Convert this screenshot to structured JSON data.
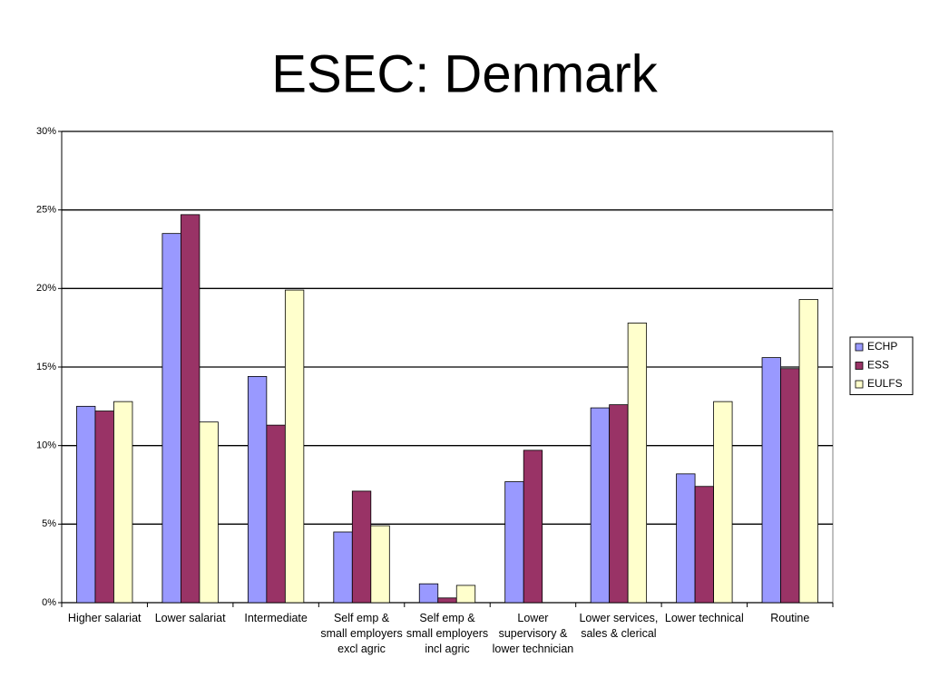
{
  "chart_data": {
    "type": "bar",
    "title": "ESEC: Denmark",
    "categories": [
      "Higher salariat",
      "Lower salariat",
      "Intermediate",
      "Self emp & small employers excl agric",
      "Self emp & small employers incl agric",
      "Lower supervisory & lower technician",
      "Lower services, sales & clerical",
      "Lower technical",
      "Routine"
    ],
    "series": [
      {
        "name": "ECHP",
        "color": "#9999ff",
        "values": [
          12.5,
          23.5,
          14.4,
          4.5,
          1.2,
          7.7,
          12.4,
          8.2,
          15.6
        ]
      },
      {
        "name": "ESS",
        "color": "#993366",
        "values": [
          12.2,
          24.7,
          11.3,
          7.1,
          0.3,
          9.7,
          12.6,
          7.4,
          14.9
        ]
      },
      {
        "name": "EULFS",
        "color": "#ffffcc",
        "values": [
          12.8,
          11.5,
          19.9,
          4.9,
          1.1,
          null,
          17.8,
          12.8,
          19.3
        ]
      }
    ],
    "ylim": [
      0,
      30
    ],
    "yticks": [
      {
        "value": 0,
        "label": "0%"
      },
      {
        "value": 5,
        "label": "5%"
      },
      {
        "value": 10,
        "label": "10%"
      },
      {
        "value": 15,
        "label": "15%"
      },
      {
        "value": 20,
        "label": "20%"
      },
      {
        "value": 25,
        "label": "25%"
      },
      {
        "value": 30,
        "label": "30%"
      }
    ],
    "grid": true,
    "legend": "right"
  }
}
